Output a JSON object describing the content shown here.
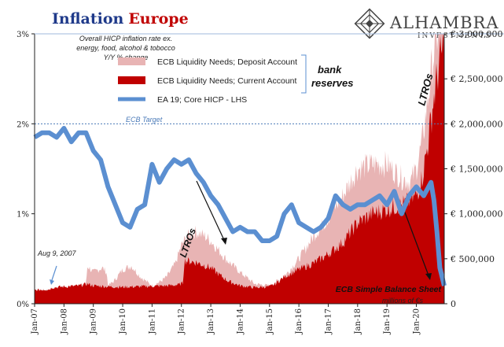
{
  "chart_data": {
    "type": "area",
    "title_part1": "Inflation",
    "title_part2": "Europe",
    "subtitle_lines": [
      "Overall HICP inflation rate ex.",
      "energy, food, alcohol & tobocco",
      "Y/Y % change"
    ],
    "brand": {
      "name": "ALHAMBRA",
      "sub": "INVESTMENTS",
      "color": "#444444"
    },
    "x_tick_labels": [
      "Jan-07",
      "Jan-08",
      "Jan-09",
      "Jan-10",
      "Jan-11",
      "Jan-12",
      "Jan-13",
      "Jan-14",
      "Jan-15",
      "Jan-16",
      "Jan-17",
      "Jan-18",
      "Jan-19",
      "Jan-20"
    ],
    "x_range": [
      2007.0,
      2020.95
    ],
    "left_axis": {
      "ticks": [
        0,
        1,
        2,
        3
      ],
      "tick_labels": [
        "0%",
        "1%",
        "2%",
        "3%"
      ],
      "range": [
        0,
        3
      ]
    },
    "right_axis": {
      "ticks": [
        0,
        500000,
        1000000,
        1500000,
        2000000,
        2500000,
        3000000
      ],
      "tick_labels": [
        "0",
        "€ 500,000",
        "€ 1,000,000",
        "€ 1,500,000",
        "€ 2,000,000",
        "€ 2,500,000",
        "€ 3,000,000"
      ],
      "range": [
        0,
        3000000
      ],
      "unit_note": "millions of €s"
    },
    "reference_line": {
      "label": "ECB Target",
      "value": 2.0,
      "color": "#4a7ab8"
    },
    "legend": {
      "entries": [
        {
          "name": "ECB Liquidity Needs; Deposit Account",
          "color": "#e8b4b4"
        },
        {
          "name": "ECB Liquidity Needs; Current Account",
          "color": "#c00000"
        },
        {
          "name": "EA 19; Core HICP - LHS",
          "color": "#5b8fd1"
        }
      ],
      "bracket_label_1": "bank",
      "bracket_label_2": "reserves"
    },
    "annotations": {
      "aug2007": "Aug 9, 2007",
      "ltro1": "LTROs",
      "ltro2": "LTROs",
      "balance_sheet": "ECB Simple Balance Sheet"
    },
    "series": [
      {
        "name": "ECB Liquidity Needs; Current Account",
        "axis": "right",
        "color": "#c00000",
        "x": [
          2007.0,
          2007.5,
          2007.6,
          2008.0,
          2008.5,
          2008.8,
          2009.0,
          2009.5,
          2010.0,
          2010.5,
          2011.0,
          2011.5,
          2011.9,
          2012.05,
          2012.1,
          2012.5,
          2013.0,
          2013.3,
          2013.6,
          2014.0,
          2014.5,
          2015.0,
          2015.2,
          2015.5,
          2016.0,
          2016.5,
          2017.0,
          2017.5,
          2018.0,
          2018.5,
          2019.0,
          2019.5,
          2019.8,
          2020.0,
          2020.2,
          2020.4,
          2020.6,
          2020.8,
          2020.95
        ],
        "y": [
          150000,
          160000,
          180000,
          190000,
          200000,
          220000,
          200000,
          190000,
          185000,
          190000,
          195000,
          200000,
          210000,
          230000,
          480000,
          460000,
          400000,
          320000,
          250000,
          200000,
          180000,
          190000,
          220000,
          300000,
          380000,
          450000,
          550000,
          680000,
          900000,
          1000000,
          1050000,
          1100000,
          1150000,
          1200000,
          1400000,
          1800000,
          2300000,
          2700000,
          2900000
        ]
      },
      {
        "name": "ECB Liquidity Needs; Deposit Account",
        "axis": "right",
        "color": "#e8b4b4",
        "x": [
          2007.0,
          2007.6,
          2008.5,
          2008.75,
          2008.8,
          2009.0,
          2009.3,
          2009.45,
          2009.5,
          2009.7,
          2010.0,
          2010.3,
          2010.6,
          2011.0,
          2011.3,
          2011.5,
          2011.8,
          2012.0,
          2012.2,
          2012.5,
          2012.8,
          2013.0,
          2013.5,
          2014.0,
          2014.5,
          2015.0,
          2015.5,
          2016.0,
          2016.5,
          2017.0,
          2017.5,
          2018.0,
          2018.5,
          2019.0,
          2019.5,
          2019.8,
          2020.0,
          2020.2,
          2020.4,
          2020.6,
          2020.8,
          2020.95
        ],
        "y": [
          150000,
          160000,
          200000,
          220000,
          420000,
          350000,
          400000,
          350000,
          200000,
          250000,
          380000,
          420000,
          300000,
          200000,
          250000,
          300000,
          450000,
          650000,
          750000,
          800000,
          750000,
          700000,
          500000,
          350000,
          220000,
          200000,
          300000,
          500000,
          750000,
          950000,
          1200000,
          1500000,
          1550000,
          1550000,
          1400000,
          1350000,
          1500000,
          1800000,
          2300000,
          2800000,
          3150000,
          3250000
        ]
      },
      {
        "name": "EA 19; Core HICP - LHS",
        "axis": "left",
        "color": "#5b8fd1",
        "x": [
          2007.0,
          2007.25,
          2007.5,
          2007.75,
          2008.0,
          2008.25,
          2008.5,
          2008.75,
          2009.0,
          2009.25,
          2009.5,
          2009.75,
          2010.0,
          2010.25,
          2010.5,
          2010.75,
          2011.0,
          2011.25,
          2011.5,
          2011.75,
          2012.0,
          2012.25,
          2012.5,
          2012.75,
          2013.0,
          2013.25,
          2013.5,
          2013.75,
          2014.0,
          2014.25,
          2014.5,
          2014.75,
          2015.0,
          2015.25,
          2015.5,
          2015.75,
          2016.0,
          2016.25,
          2016.5,
          2016.75,
          2017.0,
          2017.25,
          2017.5,
          2017.75,
          2018.0,
          2018.25,
          2018.5,
          2018.75,
          2019.0,
          2019.25,
          2019.5,
          2019.75,
          2020.0,
          2020.25,
          2020.5,
          2020.6,
          2020.7,
          2020.8,
          2020.95
        ],
        "y": [
          1.85,
          1.9,
          1.9,
          1.85,
          1.95,
          1.8,
          1.9,
          1.9,
          1.7,
          1.6,
          1.3,
          1.1,
          0.9,
          0.85,
          1.05,
          1.1,
          1.55,
          1.35,
          1.5,
          1.6,
          1.55,
          1.6,
          1.45,
          1.35,
          1.2,
          1.1,
          0.95,
          0.8,
          0.85,
          0.8,
          0.8,
          0.7,
          0.7,
          0.75,
          1.0,
          1.1,
          0.9,
          0.85,
          0.8,
          0.85,
          0.95,
          1.2,
          1.1,
          1.05,
          1.1,
          1.1,
          1.15,
          1.2,
          1.1,
          1.25,
          1.0,
          1.2,
          1.3,
          1.2,
          1.35,
          1.15,
          0.8,
          0.4,
          0.2
        ]
      }
    ]
  }
}
